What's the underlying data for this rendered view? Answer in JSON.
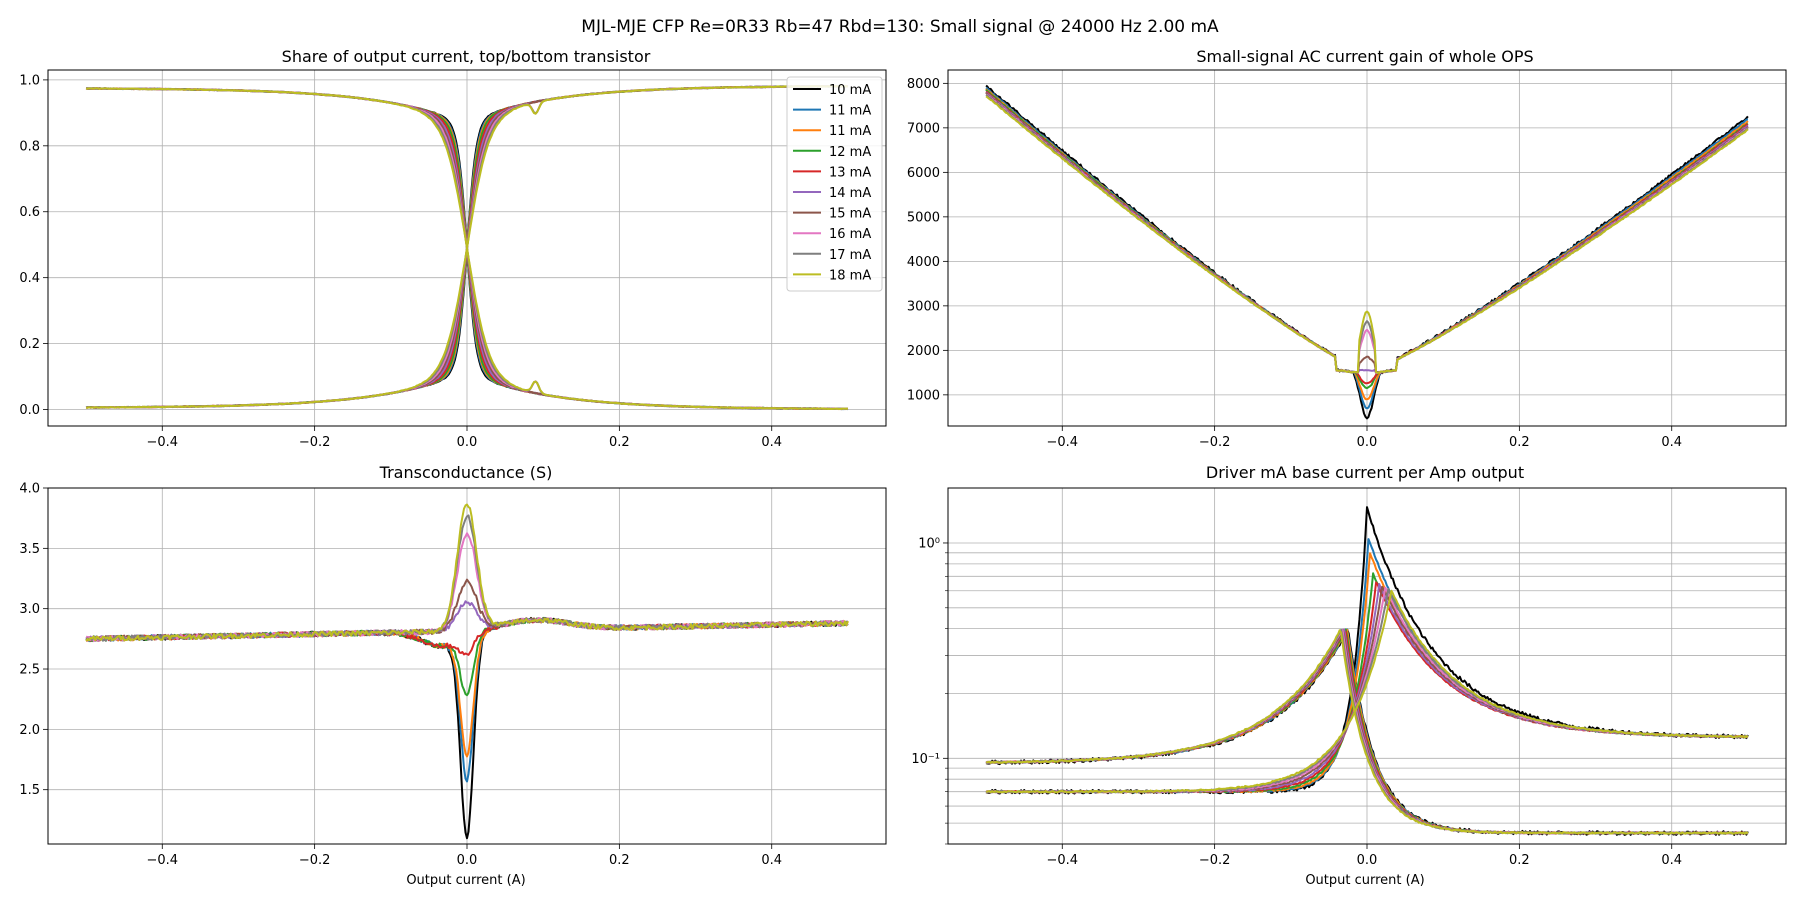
{
  "figure": {
    "suptitle": "MJL-MJE CFP Re=0R33 Rb=47 Rbd=130: Small signal @ 24000 Hz 2.00 mA"
  },
  "legend": {
    "placement": "upper-right of top-left panel",
    "entries": [
      {
        "label": "10 mA",
        "color": "#000000"
      },
      {
        "label": "11 mA",
        "color": "#1f77b4"
      },
      {
        "label": "11 mA",
        "color": "#ff7f0e"
      },
      {
        "label": "12 mA",
        "color": "#2ca02c"
      },
      {
        "label": "13 mA",
        "color": "#d62728"
      },
      {
        "label": "14 mA",
        "color": "#9467bd"
      },
      {
        "label": "15 mA",
        "color": "#8c564b"
      },
      {
        "label": "16 mA",
        "color": "#e377c2"
      },
      {
        "label": "17 mA",
        "color": "#7f7f7f"
      },
      {
        "label": "18 mA",
        "color": "#bcbd22"
      }
    ]
  },
  "chart_data": [
    {
      "type": "line",
      "title": "Share of output current, top/bottom transistor",
      "xlabel": "",
      "ylabel": "",
      "xlim": [
        -0.55,
        0.55
      ],
      "ylim": [
        -0.05,
        1.03
      ],
      "xticks": [
        -0.4,
        -0.2,
        0.0,
        0.2,
        0.4
      ],
      "xtick_labels": [
        "−0.4",
        "−0.2",
        "0.0",
        "0.2",
        "0.4"
      ],
      "yticks": [
        0.0,
        0.2,
        0.4,
        0.6,
        0.8,
        1.0
      ],
      "ytick_labels": [
        "0.0",
        "0.2",
        "0.4",
        "0.6",
        "0.8",
        "1.0"
      ],
      "grid": true,
      "x_range": [
        -0.5,
        0.5
      ],
      "curve_family": "share",
      "series_params": [
        {
          "label": "10 mA",
          "width": 0.012
        },
        {
          "label": "11 mA",
          "width": 0.013
        },
        {
          "label": "11 mA",
          "width": 0.014
        },
        {
          "label": "12 mA",
          "width": 0.015
        },
        {
          "label": "13 mA",
          "width": 0.017
        },
        {
          "label": "14 mA",
          "width": 0.019
        },
        {
          "label": "15 mA",
          "width": 0.021
        },
        {
          "label": "16 mA",
          "width": 0.023
        },
        {
          "label": "17 mA",
          "width": 0.025
        },
        {
          "label": "18 mA",
          "width": 0.027
        }
      ],
      "end_values": {
        "top_left": 0.975,
        "top_right": 0.982,
        "bottom_left": 0.005,
        "bottom_right": 0.001,
        "crossover": 0.49
      }
    },
    {
      "type": "line",
      "title": "Small-signal AC current gain of whole OPS",
      "xlabel": "",
      "ylabel": "",
      "xlim": [
        -0.55,
        0.55
      ],
      "ylim": [
        300,
        8300
      ],
      "xticks": [
        -0.4,
        -0.2,
        0.0,
        0.2,
        0.4
      ],
      "xtick_labels": [
        "−0.4",
        "−0.2",
        "0.0",
        "0.2",
        "0.4"
      ],
      "yticks": [
        1000,
        2000,
        3000,
        4000,
        5000,
        6000,
        7000,
        8000
      ],
      "ytick_labels": [
        "1000",
        "2000",
        "3000",
        "4000",
        "5000",
        "6000",
        "7000",
        "8000"
      ],
      "grid": true,
      "x_range": [
        -0.5,
        0.5
      ],
      "curve_family": "gain",
      "series_params": [
        {
          "label": "10 mA",
          "left": 7950,
          "right": 7250,
          "center": 480
        },
        {
          "label": "11 mA",
          "left": 7900,
          "right": 7200,
          "center": 700
        },
        {
          "label": "11 mA",
          "left": 7870,
          "right": 7150,
          "center": 900
        },
        {
          "label": "12 mA",
          "left": 7850,
          "right": 7100,
          "center": 1150
        },
        {
          "label": "13 mA",
          "left": 7820,
          "right": 7080,
          "center": 1250
        },
        {
          "label": "14 mA",
          "left": 7800,
          "right": 7050,
          "center": 1550
        },
        {
          "label": "15 mA",
          "left": 7780,
          "right": 7020,
          "center": 1850
        },
        {
          "label": "16 mA",
          "left": 7760,
          "right": 7000,
          "center": 2450
        },
        {
          "label": "17 mA",
          "left": 7740,
          "right": 6980,
          "center": 2650
        },
        {
          "label": "18 mA",
          "left": 7720,
          "right": 6960,
          "center": 2880
        }
      ]
    },
    {
      "type": "line",
      "title": "Transconductance (S)",
      "xlabel": "Output current (A)",
      "ylabel": "",
      "xlim": [
        -0.55,
        0.55
      ],
      "ylim": [
        1.05,
        4.0
      ],
      "xticks": [
        -0.4,
        -0.2,
        0.0,
        0.2,
        0.4
      ],
      "xtick_labels": [
        "−0.4",
        "−0.2",
        "0.0",
        "0.2",
        "0.4"
      ],
      "yticks": [
        1.5,
        2.0,
        2.5,
        3.0,
        3.5,
        4.0
      ],
      "ytick_labels": [
        "1.5",
        "2.0",
        "2.5",
        "3.0",
        "3.5",
        "4.0"
      ],
      "grid": true,
      "x_range": [
        -0.5,
        0.5
      ],
      "curve_family": "transconductance",
      "series_params": [
        {
          "label": "10 mA",
          "center": 1.17
        },
        {
          "label": "11 mA",
          "center": 1.65
        },
        {
          "label": "11 mA",
          "center": 1.85
        },
        {
          "label": "12 mA",
          "center": 2.35
        },
        {
          "label": "13 mA",
          "center": 2.68
        },
        {
          "label": "14 mA",
          "center": 3.05
        },
        {
          "label": "15 mA",
          "center": 3.22
        },
        {
          "label": "16 mA",
          "center": 3.62
        },
        {
          "label": "17 mA",
          "center": 3.76
        },
        {
          "label": "18 mA",
          "center": 3.86
        }
      ],
      "baseline": {
        "left": 2.75,
        "right": 2.88
      }
    },
    {
      "type": "line",
      "title": "Driver mA base current per Amp output",
      "xlabel": "Output current (A)",
      "ylabel": "",
      "yscale": "log",
      "xlim": [
        -0.55,
        0.55
      ],
      "ylim": [
        0.04,
        1.8
      ],
      "xticks": [
        -0.4,
        -0.2,
        0.0,
        0.2,
        0.4
      ],
      "xtick_labels": [
        "−0.4",
        "−0.2",
        "0.0",
        "0.2",
        "0.4"
      ],
      "yticks": [
        0.1,
        1.0
      ],
      "ytick_labels": [
        "10⁻¹",
        "10⁰"
      ],
      "minor_yticks": [
        0.04,
        0.05,
        0.06,
        0.07,
        0.08,
        0.09,
        0.2,
        0.3,
        0.4,
        0.5,
        0.6,
        0.7,
        0.8,
        0.9
      ],
      "grid": true,
      "x_range": [
        -0.5,
        0.5
      ],
      "curve_family": "driver",
      "series_params": [
        {
          "label": "10 mA",
          "peak": 1.45,
          "shift": 0.0
        },
        {
          "label": "11 mA",
          "peak": 1.05,
          "shift": 0.002
        },
        {
          "label": "11 mA",
          "peak": 0.9,
          "shift": 0.004
        },
        {
          "label": "12 mA",
          "peak": 0.72,
          "shift": 0.008
        },
        {
          "label": "13 mA",
          "peak": 0.66,
          "shift": 0.012
        },
        {
          "label": "14 mA",
          "peak": 0.64,
          "shift": 0.016
        },
        {
          "label": "15 mA",
          "peak": 0.63,
          "shift": 0.02
        },
        {
          "label": "16 mA",
          "peak": 0.62,
          "shift": 0.024
        },
        {
          "label": "17 mA",
          "peak": 0.61,
          "shift": 0.028
        },
        {
          "label": "18 mA",
          "peak": 0.6,
          "shift": 0.032
        }
      ],
      "end_values": {
        "upper_left": 0.095,
        "upper_right": 0.125,
        "lower_left": 0.07,
        "lower_right": 0.045,
        "left_peak": 0.4
      }
    }
  ]
}
